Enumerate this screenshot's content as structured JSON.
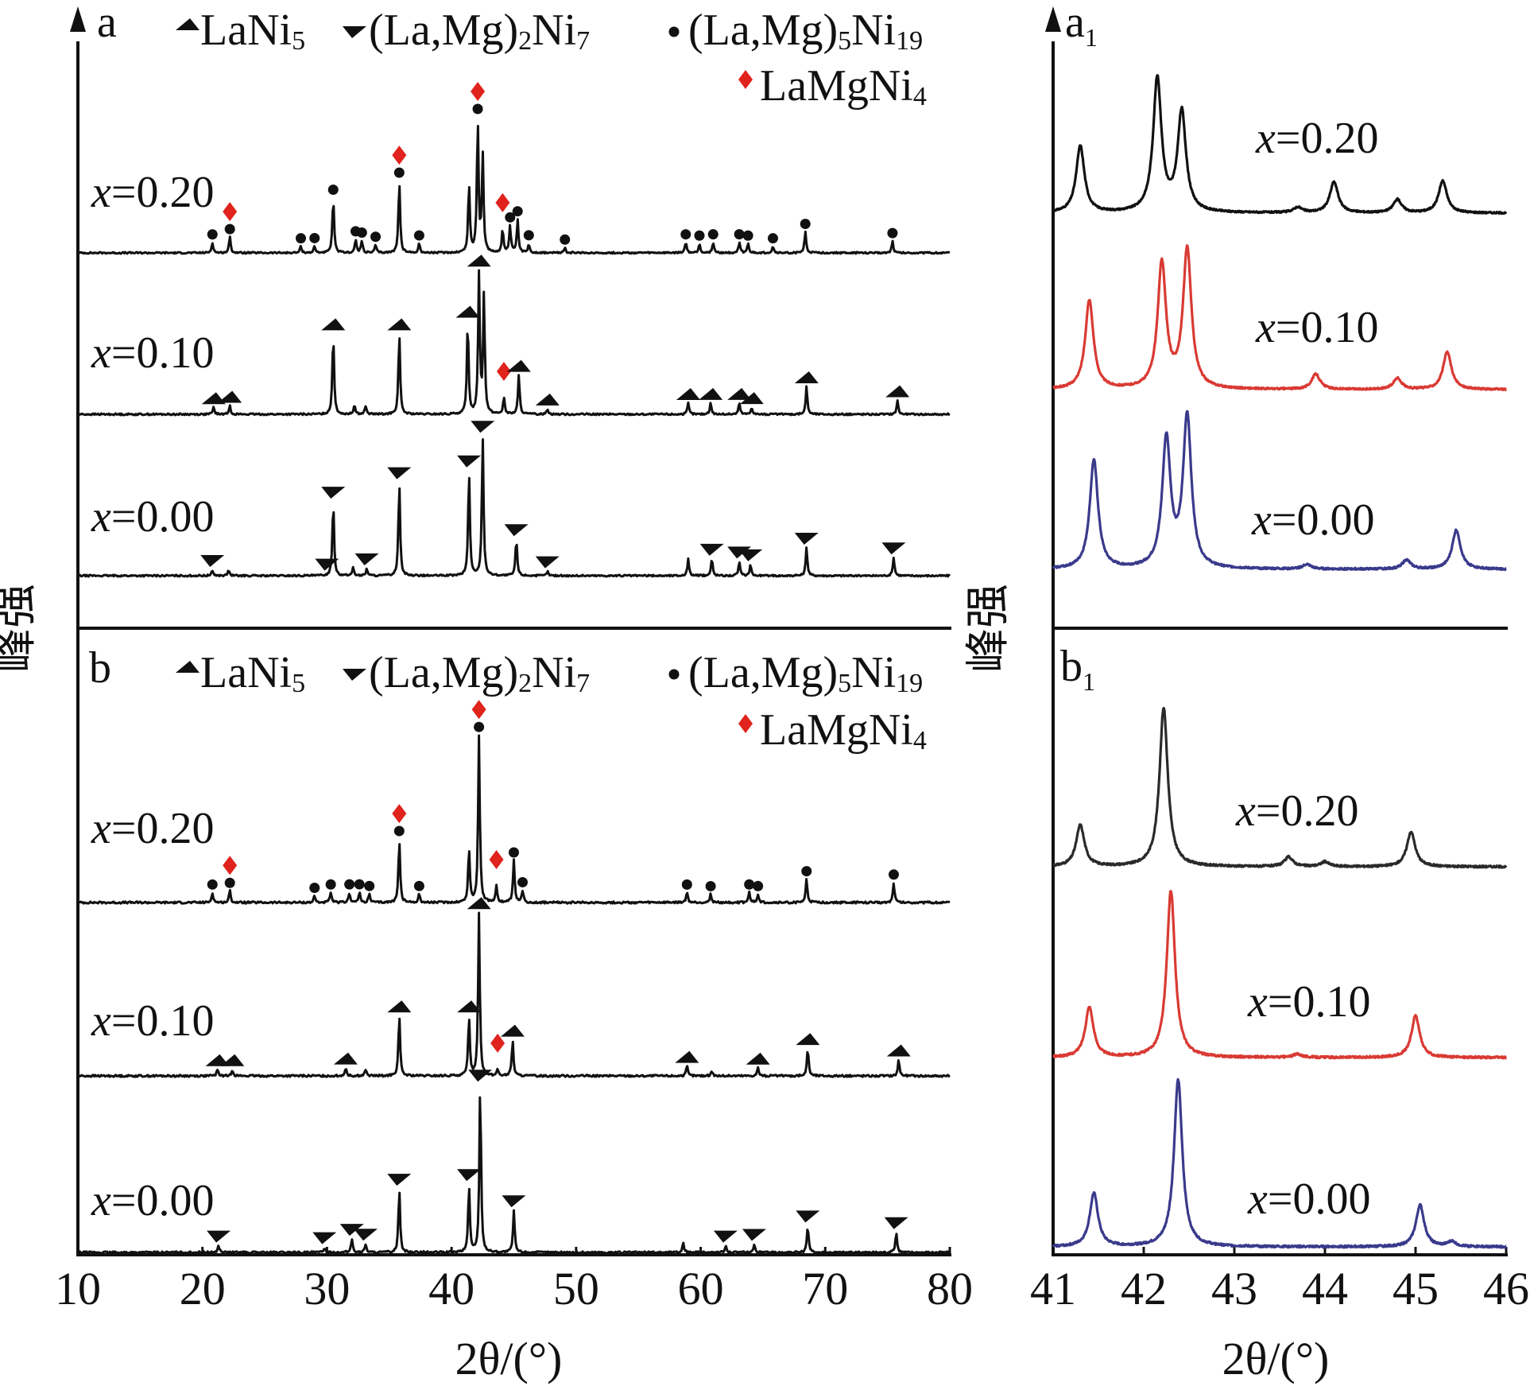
{
  "figure": {
    "y_axis_label": "峰强",
    "x_axis_label": "2θ/(°)"
  },
  "legend": {
    "items": [
      {
        "marker": "triangle-up",
        "text": "LaNi5",
        "color": "#111111"
      },
      {
        "marker": "triangle-down",
        "text": "(La,Mg)2Ni7",
        "color": "#111111"
      },
      {
        "marker": "circle",
        "text": "(La,Mg)5Ni19",
        "color": "#111111"
      },
      {
        "marker": "diamond",
        "text": "LaMgNi4",
        "color": "#e0231c"
      }
    ]
  },
  "chart_data": [
    {
      "panel": "a",
      "type": "line",
      "xlim": [
        10,
        80
      ],
      "xticks": [
        10,
        20,
        30,
        40,
        50,
        60,
        70,
        80
      ],
      "xlabel": "2θ/(°)",
      "ylabel": "峰强",
      "series": [
        {
          "name": "x=0.20",
          "color": "#111111",
          "peaks": [
            [
              20.8,
              0.08
            ],
            [
              22.2,
              0.12
            ],
            [
              27.9,
              0.05
            ],
            [
              29.0,
              0.05
            ],
            [
              30.5,
              0.42
            ],
            [
              32.3,
              0.1
            ],
            [
              32.8,
              0.09
            ],
            [
              33.9,
              0.06
            ],
            [
              35.8,
              0.55
            ],
            [
              37.4,
              0.07
            ],
            [
              41.4,
              0.52
            ],
            [
              42.1,
              1.0
            ],
            [
              42.5,
              0.75
            ],
            [
              44.1,
              0.18
            ],
            [
              44.7,
              0.2
            ],
            [
              45.3,
              0.25
            ],
            [
              46.2,
              0.07
            ],
            [
              49.1,
              0.04
            ],
            [
              58.8,
              0.08
            ],
            [
              59.9,
              0.07
            ],
            [
              61.0,
              0.08
            ],
            [
              63.1,
              0.08
            ],
            [
              63.8,
              0.07
            ],
            [
              65.8,
              0.05
            ],
            [
              68.4,
              0.16
            ],
            [
              75.4,
              0.09
            ]
          ]
        },
        {
          "name": "x=0.10",
          "color": "#111111",
          "peaks": [
            [
              20.9,
              0.05
            ],
            [
              22.2,
              0.06
            ],
            [
              30.5,
              0.58
            ],
            [
              32.2,
              0.07
            ],
            [
              33.1,
              0.06
            ],
            [
              35.8,
              0.58
            ],
            [
              41.3,
              0.66
            ],
            [
              42.2,
              1.0
            ],
            [
              42.6,
              0.85
            ],
            [
              44.2,
              0.12
            ],
            [
              45.4,
              0.28
            ],
            [
              47.7,
              0.04
            ],
            [
              59.0,
              0.08
            ],
            [
              60.8,
              0.08
            ],
            [
              63.1,
              0.08
            ],
            [
              64.1,
              0.05
            ],
            [
              68.5,
              0.2
            ],
            [
              75.8,
              0.1
            ]
          ]
        },
        {
          "name": "x=0.00",
          "color": "#111111",
          "peaks": [
            [
              20.8,
              0.04
            ],
            [
              22.1,
              0.04
            ],
            [
              30.5,
              0.53
            ],
            [
              32.1,
              0.06
            ],
            [
              33.2,
              0.05
            ],
            [
              35.8,
              0.67
            ],
            [
              41.4,
              0.75
            ],
            [
              42.5,
              1.0
            ],
            [
              45.2,
              0.26
            ],
            [
              47.7,
              0.03
            ],
            [
              59.0,
              0.12
            ],
            [
              60.9,
              0.12
            ],
            [
              63.1,
              0.1
            ],
            [
              64.0,
              0.08
            ],
            [
              68.5,
              0.2
            ],
            [
              75.5,
              0.13
            ]
          ]
        }
      ],
      "labels": [
        "x=0.20",
        "x=0.10",
        "x=0.00"
      ]
    },
    {
      "panel": "b",
      "type": "line",
      "xlim": [
        10,
        80
      ],
      "xticks": [
        10,
        20,
        30,
        40,
        50,
        60,
        70,
        80
      ],
      "xlabel": "2θ/(°)",
      "ylabel": "峰强",
      "series": [
        {
          "name": "x=0.20",
          "color": "#111111",
          "peaks": [
            [
              20.8,
              0.06
            ],
            [
              22.2,
              0.07
            ],
            [
              29.0,
              0.04
            ],
            [
              30.3,
              0.06
            ],
            [
              31.8,
              0.06
            ],
            [
              32.6,
              0.06
            ],
            [
              33.4,
              0.05
            ],
            [
              35.8,
              0.38
            ],
            [
              37.4,
              0.05
            ],
            [
              41.4,
              0.32
            ],
            [
              42.2,
              1.0
            ],
            [
              43.6,
              0.1
            ],
            [
              45.0,
              0.25
            ],
            [
              45.7,
              0.07
            ],
            [
              58.9,
              0.06
            ],
            [
              60.8,
              0.05
            ],
            [
              63.9,
              0.06
            ],
            [
              64.6,
              0.05
            ],
            [
              68.5,
              0.14
            ],
            [
              75.5,
              0.12
            ]
          ]
        },
        {
          "name": "x=0.10",
          "color": "#111111",
          "peaks": [
            [
              21.2,
              0.04
            ],
            [
              22.4,
              0.04
            ],
            [
              31.5,
              0.05
            ],
            [
              33.1,
              0.04
            ],
            [
              35.8,
              0.37
            ],
            [
              41.4,
              0.36
            ],
            [
              42.2,
              1.0
            ],
            [
              43.7,
              0.04
            ],
            [
              44.9,
              0.22
            ],
            [
              58.9,
              0.06
            ],
            [
              60.9,
              0.03
            ],
            [
              64.6,
              0.05
            ],
            [
              68.6,
              0.17
            ],
            [
              75.9,
              0.1
            ]
          ]
        },
        {
          "name": "x=0.00",
          "color": "#111111",
          "peaks": [
            [
              21.3,
              0.04
            ],
            [
              29.8,
              0.03
            ],
            [
              32.0,
              0.08
            ],
            [
              33.1,
              0.05
            ],
            [
              35.8,
              0.38
            ],
            [
              41.4,
              0.4
            ],
            [
              42.3,
              1.0
            ],
            [
              45.0,
              0.25
            ],
            [
              58.6,
              0.06
            ],
            [
              62.0,
              0.04
            ],
            [
              64.3,
              0.05
            ],
            [
              68.6,
              0.16
            ],
            [
              75.7,
              0.12
            ]
          ]
        }
      ],
      "labels": [
        "x=0.20",
        "x=0.10",
        "x=0.00"
      ]
    },
    {
      "panel": "a1",
      "type": "line",
      "xlim": [
        41,
        46
      ],
      "xticks": [
        41,
        42,
        43,
        44,
        45,
        46
      ],
      "xlabel": "2θ/(°)",
      "ylabel": "峰强",
      "series": [
        {
          "name": "x=0.20",
          "color": "#111111",
          "peaks": [
            [
              41.3,
              0.5
            ],
            [
              42.15,
              1.0
            ],
            [
              42.42,
              0.75
            ],
            [
              43.7,
              0.04
            ],
            [
              44.1,
              0.23
            ],
            [
              44.8,
              0.1
            ],
            [
              45.3,
              0.24
            ]
          ]
        },
        {
          "name": "x=0.10",
          "color": "#d93a33",
          "peaks": [
            [
              41.4,
              0.64
            ],
            [
              42.2,
              0.9
            ],
            [
              42.48,
              1.0
            ],
            [
              43.9,
              0.11
            ],
            [
              44.8,
              0.08
            ],
            [
              45.35,
              0.27
            ]
          ]
        },
        {
          "name": "x=0.00",
          "color": "#3a3a8c",
          "peaks": [
            [
              41.45,
              0.72
            ],
            [
              42.25,
              0.85
            ],
            [
              42.48,
              1.0
            ],
            [
              43.8,
              0.03
            ],
            [
              44.9,
              0.06
            ],
            [
              45.45,
              0.26
            ]
          ]
        }
      ],
      "labels": [
        "x=0.20",
        "x=0.10",
        "x=0.00"
      ]
    },
    {
      "panel": "b1",
      "type": "line",
      "xlim": [
        41,
        46
      ],
      "xticks": [
        41,
        42,
        43,
        44,
        45,
        46
      ],
      "xlabel": "2θ/(°)",
      "ylabel": "峰强",
      "series": [
        {
          "name": "x=0.20",
          "color": "#2a2a2a",
          "peaks": [
            [
              41.3,
              0.26
            ],
            [
              42.22,
              1.0
            ],
            [
              43.6,
              0.06
            ],
            [
              44.0,
              0.03
            ],
            [
              44.95,
              0.22
            ]
          ]
        },
        {
          "name": "x=0.10",
          "color": "#d93a33",
          "peaks": [
            [
              41.4,
              0.3
            ],
            [
              42.3,
              1.0
            ],
            [
              43.7,
              0.02
            ],
            [
              45.0,
              0.25
            ]
          ]
        },
        {
          "name": "x=0.00",
          "color": "#3a3a8c",
          "peaks": [
            [
              41.45,
              0.32
            ],
            [
              42.38,
              1.0
            ],
            [
              45.05,
              0.25
            ],
            [
              45.4,
              0.03
            ]
          ]
        }
      ],
      "labels": [
        "x=0.20",
        "x=0.10",
        "x=0.00"
      ]
    }
  ],
  "markers": {
    "a": {
      "x=0.20": [
        [
          "circle",
          20.8
        ],
        [
          "circle",
          22.2
        ],
        [
          "diamond",
          22.2
        ],
        [
          "circle",
          27.9
        ],
        [
          "circle",
          29.0
        ],
        [
          "circle",
          30.5
        ],
        [
          "circle",
          32.3
        ],
        [
          "circle",
          32.8
        ],
        [
          "circle",
          33.9
        ],
        [
          "circle",
          35.8
        ],
        [
          "diamond",
          35.8
        ],
        [
          "circle",
          37.4
        ],
        [
          "circle",
          42.1
        ],
        [
          "diamond",
          42.1
        ],
        [
          "circle",
          44.7
        ],
        [
          "diamond",
          44.1
        ],
        [
          "circle",
          45.3
        ],
        [
          "circle",
          46.2
        ],
        [
          "circle",
          49.1
        ],
        [
          "circle",
          58.8
        ],
        [
          "circle",
          59.9
        ],
        [
          "circle",
          61.0
        ],
        [
          "circle",
          63.1
        ],
        [
          "circle",
          63.8
        ],
        [
          "circle",
          65.8
        ],
        [
          "circle",
          68.4
        ],
        [
          "circle",
          75.4
        ]
      ],
      "x=0.10": [
        [
          "triangle-up",
          20.9
        ],
        [
          "triangle-up",
          22.2
        ],
        [
          "triangle-up",
          30.5
        ],
        [
          "triangle-up",
          35.8
        ],
        [
          "triangle-up",
          41.3
        ],
        [
          "triangle-up",
          42.2
        ],
        [
          "diamond",
          44.2
        ],
        [
          "triangle-up",
          45.4
        ],
        [
          "triangle-up",
          47.7
        ],
        [
          "triangle-up",
          59.0
        ],
        [
          "triangle-up",
          60.8
        ],
        [
          "triangle-up",
          63.1
        ],
        [
          "triangle-up",
          64.1
        ],
        [
          "triangle-up",
          68.5
        ],
        [
          "triangle-up",
          75.8
        ]
      ],
      "x=0.00": [
        [
          "triangle-down",
          20.8
        ],
        [
          "triangle-down",
          30.0
        ],
        [
          "triangle-down",
          30.5
        ],
        [
          "triangle-down",
          33.2
        ],
        [
          "triangle-down",
          35.8
        ],
        [
          "triangle-down",
          41.4
        ],
        [
          "triangle-down",
          42.5
        ],
        [
          "triangle-down",
          45.2
        ],
        [
          "triangle-down",
          47.7
        ],
        [
          "triangle-down",
          60.9
        ],
        [
          "triangle-down",
          63.1
        ],
        [
          "triangle-down",
          64.0
        ],
        [
          "triangle-down",
          68.5
        ],
        [
          "triangle-down",
          75.5
        ]
      ]
    },
    "b": {
      "x=0.20": [
        [
          "circle",
          20.8
        ],
        [
          "circle",
          22.2
        ],
        [
          "diamond",
          22.2
        ],
        [
          "circle",
          29.0
        ],
        [
          "circle",
          30.3
        ],
        [
          "circle",
          31.8
        ],
        [
          "circle",
          32.6
        ],
        [
          "circle",
          33.4
        ],
        [
          "circle",
          35.8
        ],
        [
          "diamond",
          35.8
        ],
        [
          "circle",
          37.4
        ],
        [
          "circle",
          42.2
        ],
        [
          "diamond",
          42.2
        ],
        [
          "diamond",
          43.6
        ],
        [
          "circle",
          45.0
        ],
        [
          "circle",
          45.7
        ],
        [
          "circle",
          58.9
        ],
        [
          "circle",
          60.8
        ],
        [
          "circle",
          63.9
        ],
        [
          "circle",
          64.6
        ],
        [
          "circle",
          68.5
        ],
        [
          "circle",
          75.5
        ]
      ],
      "x=0.10": [
        [
          "triangle-up",
          21.2
        ],
        [
          "triangle-up",
          22.4
        ],
        [
          "triangle-up",
          31.5
        ],
        [
          "triangle-up",
          35.8
        ],
        [
          "triangle-up",
          41.4
        ],
        [
          "triangle-up",
          42.2
        ],
        [
          "diamond",
          43.7
        ],
        [
          "triangle-up",
          44.9
        ],
        [
          "triangle-up",
          58.9
        ],
        [
          "triangle-up",
          64.6
        ],
        [
          "triangle-up",
          68.6
        ],
        [
          "triangle-up",
          75.9
        ]
      ],
      "x=0.00": [
        [
          "triangle-down",
          21.3
        ],
        [
          "triangle-down",
          29.8
        ],
        [
          "triangle-down",
          32.0
        ],
        [
          "triangle-down",
          33.1
        ],
        [
          "triangle-down",
          35.8
        ],
        [
          "triangle-down",
          41.4
        ],
        [
          "triangle-down",
          42.3
        ],
        [
          "triangle-down",
          45.0
        ],
        [
          "triangle-down",
          62.0
        ],
        [
          "triangle-down",
          64.3
        ],
        [
          "triangle-down",
          68.6
        ],
        [
          "triangle-down",
          75.7
        ]
      ]
    }
  }
}
